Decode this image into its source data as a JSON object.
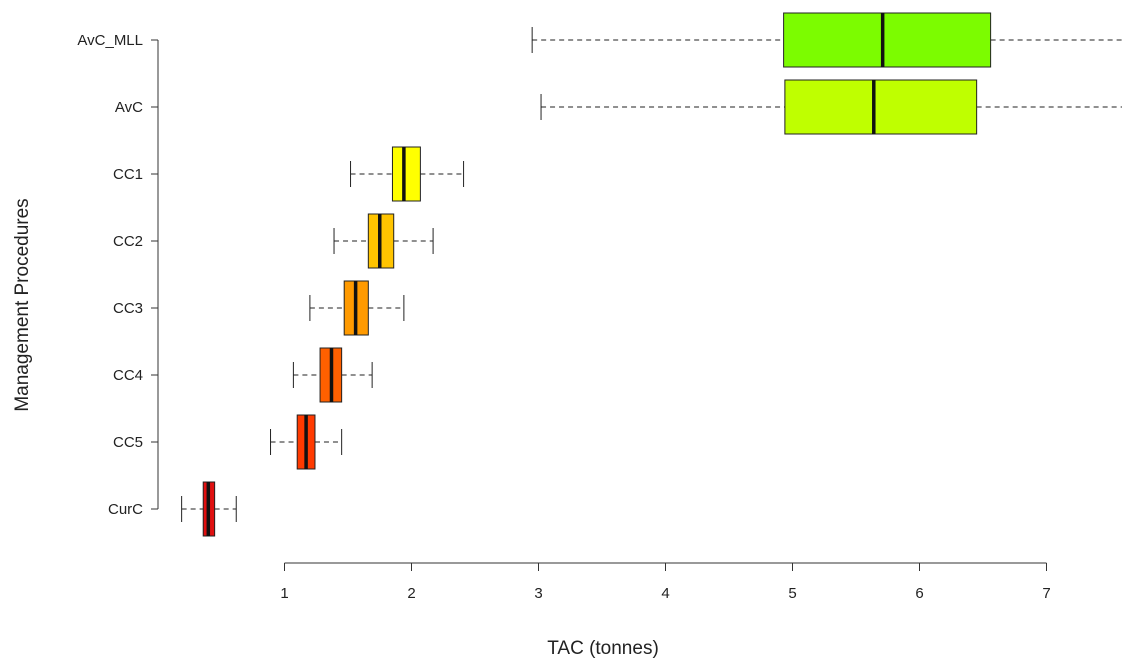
{
  "chart_data": {
    "type": "boxplot",
    "orientation": "horizontal",
    "title": "",
    "xlabel": "TAC (tonnes)",
    "ylabel": "Management Procedures",
    "xlim": [
      0.0,
      7.6
    ],
    "xticks": [
      1,
      2,
      3,
      4,
      5,
      6,
      7
    ],
    "grid": false,
    "series": [
      {
        "name": "AvC_MLL",
        "whisker_low": 2.95,
        "q1": 4.93,
        "median": 5.71,
        "q3": 6.56,
        "whisker_high": 7.6,
        "color": "#7cfc00"
      },
      {
        "name": "AvC",
        "whisker_low": 3.02,
        "q1": 4.94,
        "median": 5.64,
        "q3": 6.45,
        "whisker_high": 7.6,
        "color": "#bfff00"
      },
      {
        "name": "CC1",
        "whisker_low": 1.52,
        "q1": 1.85,
        "median": 1.94,
        "q3": 2.07,
        "whisker_high": 2.41,
        "color": "#ffff00"
      },
      {
        "name": "CC2",
        "whisker_low": 1.39,
        "q1": 1.66,
        "median": 1.75,
        "q3": 1.86,
        "whisker_high": 2.17,
        "color": "#ffc400"
      },
      {
        "name": "CC3",
        "whisker_low": 1.2,
        "q1": 1.47,
        "median": 1.56,
        "q3": 1.66,
        "whisker_high": 1.94,
        "color": "#ff9a00"
      },
      {
        "name": "CC4",
        "whisker_low": 1.07,
        "q1": 1.28,
        "median": 1.37,
        "q3": 1.45,
        "whisker_high": 1.69,
        "color": "#ff6000"
      },
      {
        "name": "CC5",
        "whisker_low": 0.89,
        "q1": 1.1,
        "median": 1.17,
        "q3": 1.24,
        "whisker_high": 1.45,
        "color": "#ff3a00"
      },
      {
        "name": "CurC",
        "whisker_low": 0.19,
        "q1": 0.36,
        "median": 0.4,
        "q3": 0.45,
        "whisker_high": 0.62,
        "color": "#e01010"
      }
    ]
  }
}
